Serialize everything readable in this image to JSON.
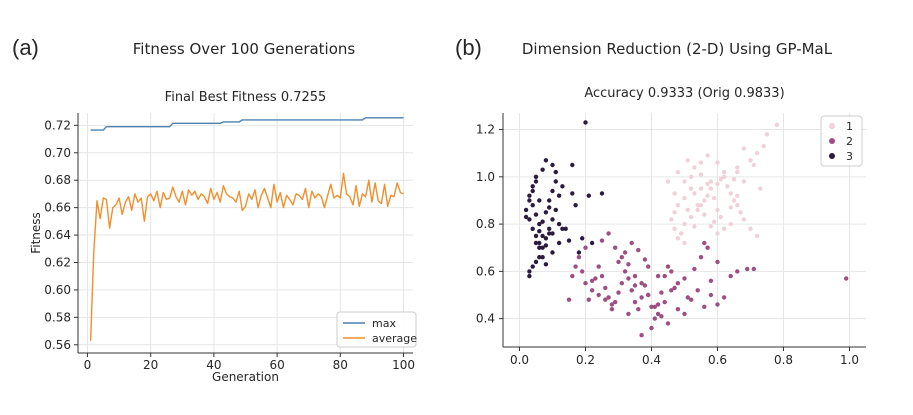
{
  "panels": [
    {
      "label": "(a)",
      "title": "Fitness Over 100 Generations"
    },
    {
      "label": "(b)",
      "title": "Dimension Reduction (2-D) Using GP-MaL"
    }
  ],
  "chart_data": [
    {
      "type": "line",
      "title": "Final Best Fitness 0.7255",
      "xlabel": "Generation",
      "ylabel": "Fitness",
      "xlim": [
        -3,
        103
      ],
      "ylim": [
        0.554,
        0.729
      ],
      "xticks": [
        "0",
        "20",
        "40",
        "60",
        "80",
        "100"
      ],
      "xtick_values": [
        0,
        20,
        40,
        60,
        80,
        100
      ],
      "yticks": [
        "0.56",
        "0.58",
        "0.60",
        "0.62",
        "0.64",
        "0.66",
        "0.68",
        "0.70",
        "0.72"
      ],
      "ytick_values": [
        0.56,
        0.58,
        0.6,
        0.62,
        0.64,
        0.66,
        0.68,
        0.7,
        0.72
      ],
      "grid": true,
      "legend_position": "bottom-right",
      "series": [
        {
          "name": "max",
          "color": "#4c81b2",
          "x": [
            1,
            5,
            6,
            26,
            27,
            42,
            43,
            48,
            49,
            87,
            88,
            100
          ],
          "y": [
            0.7165,
            0.7165,
            0.719,
            0.719,
            0.7215,
            0.7215,
            0.7225,
            0.7225,
            0.724,
            0.724,
            0.7255,
            0.7255
          ]
        },
        {
          "name": "average",
          "color": "#f28e2b",
          "x": [
            1,
            2,
            3,
            4,
            5,
            6,
            7,
            8,
            9,
            10,
            11,
            12,
            13,
            14,
            15,
            16,
            17,
            18,
            19,
            20,
            21,
            22,
            23,
            24,
            25,
            26,
            27,
            28,
            29,
            30,
            31,
            32,
            33,
            34,
            35,
            36,
            37,
            38,
            39,
            40,
            41,
            42,
            43,
            44,
            45,
            46,
            47,
            48,
            49,
            50,
            51,
            52,
            53,
            54,
            55,
            56,
            57,
            58,
            59,
            60,
            61,
            62,
            63,
            64,
            65,
            66,
            67,
            68,
            69,
            70,
            71,
            72,
            73,
            74,
            75,
            76,
            77,
            78,
            79,
            80,
            81,
            82,
            83,
            84,
            85,
            86,
            87,
            88,
            89,
            90,
            91,
            92,
            93,
            94,
            95,
            96,
            97,
            98,
            99,
            100
          ],
          "y": [
            0.563,
            0.628,
            0.665,
            0.652,
            0.667,
            0.666,
            0.645,
            0.66,
            0.662,
            0.667,
            0.655,
            0.664,
            0.668,
            0.658,
            0.67,
            0.664,
            0.667,
            0.65,
            0.668,
            0.67,
            0.665,
            0.672,
            0.66,
            0.671,
            0.666,
            0.667,
            0.675,
            0.668,
            0.664,
            0.672,
            0.662,
            0.673,
            0.669,
            0.672,
            0.666,
            0.67,
            0.668,
            0.663,
            0.674,
            0.666,
            0.671,
            0.664,
            0.676,
            0.67,
            0.668,
            0.667,
            0.664,
            0.672,
            0.658,
            0.661,
            0.67,
            0.666,
            0.673,
            0.66,
            0.669,
            0.674,
            0.667,
            0.66,
            0.677,
            0.664,
            0.671,
            0.66,
            0.669,
            0.666,
            0.662,
            0.67,
            0.669,
            0.666,
            0.674,
            0.66,
            0.672,
            0.667,
            0.67,
            0.668,
            0.66,
            0.669,
            0.677,
            0.667,
            0.669,
            0.667,
            0.685,
            0.67,
            0.668,
            0.662,
            0.676,
            0.661,
            0.67,
            0.668,
            0.68,
            0.664,
            0.678,
            0.665,
            0.663,
            0.677,
            0.661,
            0.669,
            0.668,
            0.678,
            0.671,
            0.67
          ]
        }
      ]
    },
    {
      "type": "scatter",
      "title": "Accuracy 0.9333 (Orig 0.9833)",
      "xlim": [
        -0.05,
        1.05
      ],
      "ylim": [
        0.28,
        1.27
      ],
      "xticks": [
        "0.0",
        "0.2",
        "0.4",
        "0.6",
        "0.8",
        "1.0"
      ],
      "xtick_values": [
        0.0,
        0.2,
        0.4,
        0.6,
        0.8,
        1.0
      ],
      "yticks": [
        "0.4",
        "0.6",
        "0.8",
        "1.0",
        "1.2"
      ],
      "ytick_values": [
        0.4,
        0.6,
        0.8,
        1.0,
        1.2
      ],
      "grid": true,
      "legend_position": "top-right",
      "series": [
        {
          "name": "1",
          "color": "#efd2d8",
          "x": [
            0.78,
            0.75,
            0.74,
            0.72,
            0.7,
            0.71,
            0.68,
            0.66,
            0.65,
            0.6,
            0.62,
            0.58,
            0.52,
            0.5,
            0.55,
            0.53,
            0.48,
            0.47,
            0.46,
            0.47,
            0.49,
            0.5,
            0.52,
            0.54,
            0.56,
            0.57,
            0.58,
            0.6,
            0.61,
            0.62,
            0.63,
            0.64,
            0.65,
            0.66,
            0.67,
            0.68,
            0.7,
            0.72,
            0.73,
            0.66,
            0.68,
            0.64,
            0.6,
            0.59,
            0.57,
            0.55,
            0.53,
            0.51,
            0.5,
            0.49,
            0.48,
            0.52,
            0.54,
            0.56,
            0.58,
            0.6,
            0.62,
            0.5,
            0.47,
            0.45,
            0.48,
            0.55,
            0.57,
            0.61,
            0.64,
            0.66,
            0.59,
            0.51,
            0.53,
            0.55
          ],
          "y": [
            1.22,
            1.18,
            1.13,
            1.1,
            1.07,
            1.05,
            1.12,
            1.02,
            0.99,
            1.06,
            1.02,
            0.98,
            1.0,
            0.98,
            0.95,
            0.93,
            0.88,
            0.85,
            0.82,
            0.78,
            0.76,
            0.8,
            0.83,
            0.86,
            0.9,
            0.92,
            0.95,
            0.97,
            0.99,
            1.0,
            0.96,
            0.93,
            0.9,
            0.88,
            0.85,
            0.82,
            0.78,
            0.75,
            0.95,
            1.04,
            0.98,
            0.8,
            0.86,
            0.91,
            0.97,
            1.01,
            1.04,
            1.07,
            0.72,
            0.76,
            0.74,
            0.95,
            0.88,
            0.84,
            0.79,
            0.76,
            0.78,
            0.91,
            0.93,
            0.98,
            1.02,
            1.06,
            1.09,
            0.83,
            0.87,
            0.92,
            0.81,
            0.86,
            0.79,
            0.88
          ]
        },
        {
          "name": "2",
          "color": "#9e4f81",
          "x": [
            0.99,
            0.71,
            0.69,
            0.66,
            0.64,
            0.62,
            0.6,
            0.58,
            0.56,
            0.54,
            0.52,
            0.5,
            0.48,
            0.46,
            0.45,
            0.44,
            0.43,
            0.42,
            0.41,
            0.4,
            0.39,
            0.38,
            0.37,
            0.36,
            0.35,
            0.34,
            0.33,
            0.32,
            0.31,
            0.3,
            0.29,
            0.28,
            0.27,
            0.26,
            0.25,
            0.24,
            0.23,
            0.22,
            0.21,
            0.2,
            0.19,
            0.18,
            0.17,
            0.16,
            0.15,
            0.4,
            0.42,
            0.44,
            0.47,
            0.5,
            0.53,
            0.55,
            0.57,
            0.3,
            0.32,
            0.34,
            0.36,
            0.38,
            0.25,
            0.27,
            0.29,
            0.31,
            0.33,
            0.35,
            0.37,
            0.39,
            0.41,
            0.43,
            0.45,
            0.48,
            0.51,
            0.46,
            0.58,
            0.6,
            0.56,
            0.28,
            0.24,
            0.22,
            0.37,
            0.39,
            0.35,
            0.33,
            0.2,
            0.26,
            0.42
          ],
          "y": [
            0.57,
            0.61,
            0.61,
            0.6,
            0.58,
            0.49,
            0.46,
            0.5,
            0.45,
            0.52,
            0.48,
            0.42,
            0.55,
            0.6,
            0.62,
            0.58,
            0.51,
            0.46,
            0.4,
            0.45,
            0.5,
            0.54,
            0.49,
            0.44,
            0.47,
            0.52,
            0.57,
            0.6,
            0.55,
            0.51,
            0.47,
            0.44,
            0.49,
            0.53,
            0.58,
            0.62,
            0.57,
            0.52,
            0.48,
            0.55,
            0.6,
            0.66,
            0.62,
            0.58,
            0.48,
            0.36,
            0.42,
            0.47,
            0.53,
            0.57,
            0.61,
            0.66,
            0.7,
            0.64,
            0.68,
            0.72,
            0.69,
            0.65,
            0.73,
            0.76,
            0.7,
            0.66,
            0.63,
            0.58,
            0.55,
            0.5,
            0.45,
            0.41,
            0.38,
            0.44,
            0.49,
            0.52,
            0.56,
            0.64,
            0.72,
            0.46,
            0.5,
            0.56,
            0.33,
            0.62,
            0.54,
            0.42,
            0.7,
            0.48,
            0.58
          ]
        },
        {
          "name": "3",
          "color": "#2b1c3f",
          "x": [
            0.2,
            0.16,
            0.1,
            0.08,
            0.07,
            0.05,
            0.04,
            0.03,
            0.02,
            0.03,
            0.04,
            0.05,
            0.06,
            0.07,
            0.08,
            0.09,
            0.1,
            0.11,
            0.12,
            0.13,
            0.05,
            0.06,
            0.08,
            0.1,
            0.12,
            0.14,
            0.17,
            0.19,
            0.22,
            0.25,
            0.07,
            0.06,
            0.05,
            0.04,
            0.03,
            0.04,
            0.05,
            0.06,
            0.07,
            0.08,
            0.09,
            0.1,
            0.11,
            0.06,
            0.05,
            0.09,
            0.13,
            0.15,
            0.18,
            0.11,
            0.03,
            0.04,
            0.07,
            0.08,
            0.02,
            0.16,
            0.21,
            0.09,
            0.12,
            0.06,
            0.1,
            0.03
          ],
          "y": [
            1.23,
            1.05,
            1.05,
            1.07,
            1.03,
            0.98,
            0.94,
            0.9,
            0.86,
            0.82,
            0.78,
            0.75,
            0.72,
            0.7,
            0.74,
            0.78,
            0.82,
            0.86,
            0.92,
            0.96,
            0.64,
            0.66,
            0.63,
            0.68,
            0.72,
            0.78,
            0.88,
            0.74,
            0.72,
            0.93,
            0.75,
            0.8,
            0.84,
            0.88,
            0.92,
            0.96,
            1.0,
            0.77,
            0.81,
            0.85,
            0.9,
            0.94,
            0.98,
            0.7,
            0.72,
            0.76,
            0.78,
            0.73,
            0.68,
            1.02,
            0.58,
            0.62,
            0.66,
            0.71,
            0.83,
            0.93,
            0.92,
            0.87,
            0.8,
            0.9,
            0.76,
            0.6
          ]
        }
      ]
    }
  ]
}
